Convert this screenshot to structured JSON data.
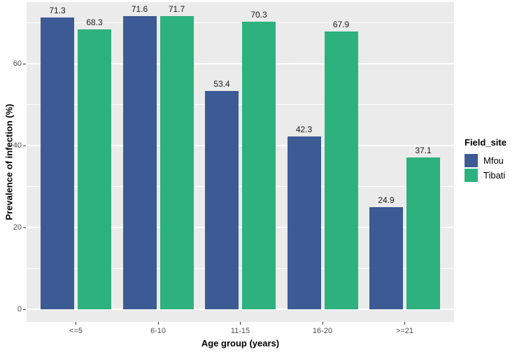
{
  "chart_data": {
    "type": "bar",
    "title": "",
    "xlabel": "Age group (years)",
    "ylabel": "Prevalence of infection (%)",
    "legend_title": "Field_site",
    "legend_position": "right",
    "categories": [
      "<=5",
      "6-10",
      "11-15",
      "16-20",
      ">=21"
    ],
    "series": [
      {
        "name": "Mfou",
        "color": "#3C5B94",
        "values": [
          71.3,
          71.6,
          53.4,
          42.3,
          24.9
        ]
      },
      {
        "name": "Tibati",
        "color": "#2DB17E",
        "values": [
          68.3,
          71.7,
          70.3,
          67.9,
          37.1
        ]
      }
    ],
    "bar_labels": true,
    "ylim": [
      0,
      75.6
    ],
    "y_major_ticks": [
      0,
      20,
      40,
      60
    ],
    "y_minor_ticks": [
      10,
      30,
      50,
      70
    ],
    "grid": true,
    "panel_bg": "#EBEBEB",
    "grid_color": "#FFFFFF",
    "tick_color": "#333333",
    "tick_label_color": "#4d4d4d"
  }
}
